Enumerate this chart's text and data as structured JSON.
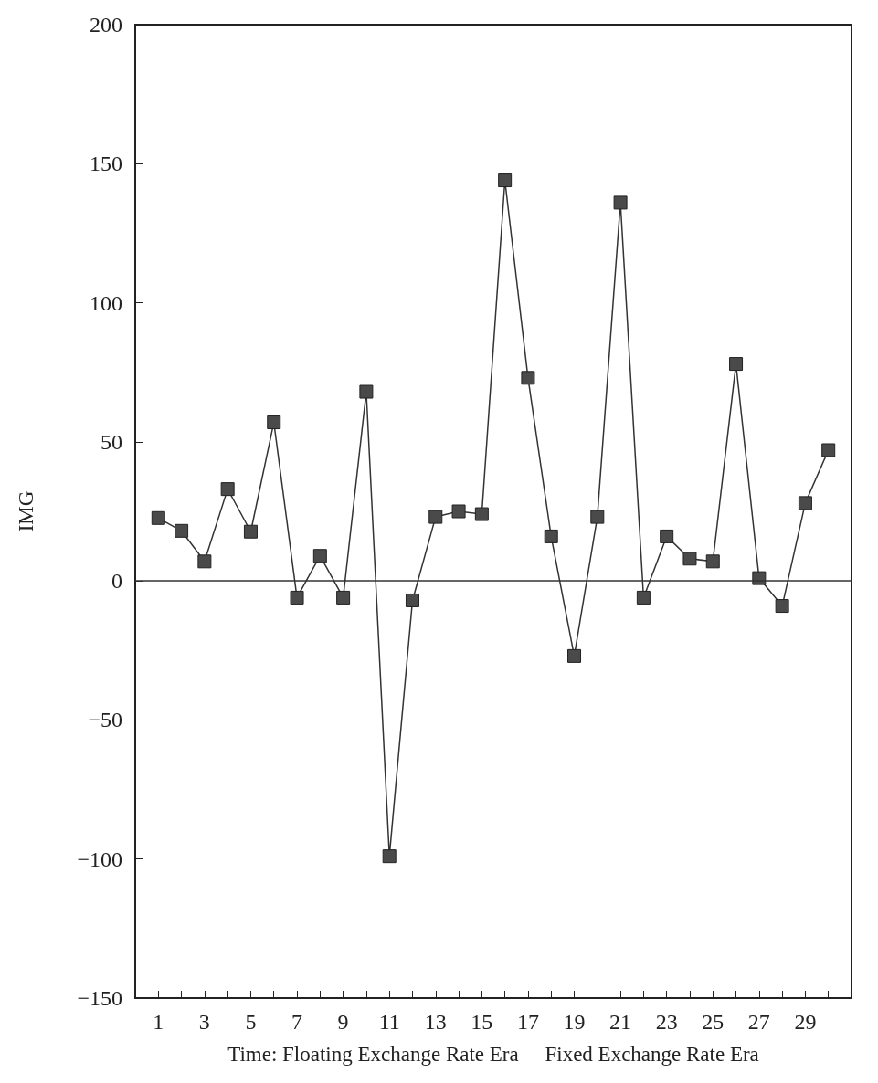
{
  "chart_data": {
    "type": "line",
    "xlabel": "Time: Floating Exchange Rate Era     Fixed Exchange Rate Era",
    "ylabel": "IMG",
    "x": [
      1,
      2,
      3,
      4,
      5,
      6,
      7,
      8,
      9,
      10,
      11,
      12,
      13,
      14,
      15,
      16,
      17,
      18,
      19,
      20,
      21,
      22,
      23,
      24,
      25,
      26,
      27,
      28,
      29,
      30
    ],
    "series": [
      {
        "color": "#4a4a4a",
        "values": [
          22.6,
          18,
          7,
          33,
          17.7,
          57,
          -6,
          9,
          -6,
          68,
          -99,
          -7,
          23,
          25,
          24,
          144,
          73,
          16,
          -27,
          23,
          136,
          -6,
          16,
          8,
          7,
          78,
          1,
          -9,
          28,
          47
        ]
      }
    ],
    "xlim": [
      0,
      31
    ],
    "xticks": [
      1,
      {
        "value": 2,
        "label": null
      },
      3,
      {
        "value": 4,
        "label": null
      },
      5,
      {
        "value": 6,
        "label": null
      },
      7,
      {
        "value": 8,
        "label": null
      },
      9,
      {
        "value": 10,
        "label": null
      },
      11,
      {
        "value": 12,
        "label": null
      },
      13,
      {
        "value": 14,
        "label": null
      },
      15,
      {
        "value": 16,
        "label": null
      },
      17,
      {
        "value": 18,
        "label": null
      },
      19,
      {
        "value": 20,
        "label": null
      },
      21,
      {
        "value": 22,
        "label": null
      },
      23,
      {
        "value": 24,
        "label": null
      },
      25,
      {
        "value": 26,
        "label": null
      },
      27,
      {
        "value": 28,
        "label": null
      },
      29,
      {
        "value": 30,
        "label": null
      }
    ],
    "ylim": [
      -150,
      200
    ],
    "yticks": [
      {
        "value": -150,
        "label": "−150"
      },
      {
        "value": -100,
        "label": "−100"
      },
      {
        "value": -50,
        "label": "−50"
      },
      0,
      50,
      100,
      150,
      200
    ],
    "ref_lines": [
      {
        "axis": "y",
        "value": 0,
        "color": "#333333"
      }
    ],
    "marker": "square",
    "grid": false
  }
}
